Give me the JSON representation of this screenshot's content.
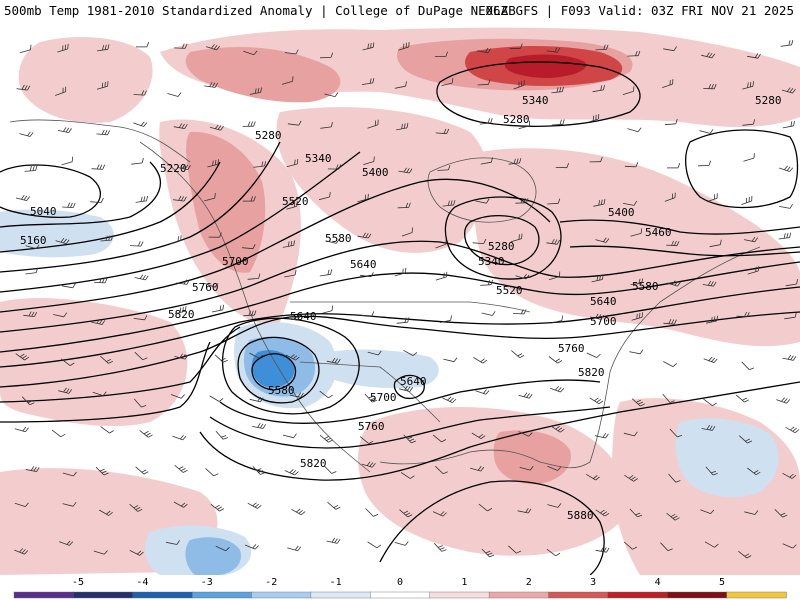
{
  "header": {
    "title_left": "500mb Temp 1981-2010 Standardized Anomaly | College of DuPage NEXLAB",
    "title_right": "06Z GFS | F093 Valid: 03Z FRI NOV 21 2025"
  },
  "map": {
    "contour_labels": [
      "5040",
      "5160",
      "5220",
      "5280",
      "5340",
      "5400",
      "5520",
      "5580",
      "5640",
      "5700",
      "5760",
      "5820",
      "5640",
      "5580",
      "5700",
      "5760",
      "5820",
      "5640",
      "5880",
      "5400",
      "5460",
      "5520",
      "5580",
      "5640",
      "5700",
      "5760",
      "5820",
      "5280",
      "5340",
      "5340",
      "5280",
      "5280"
    ],
    "colors": {
      "warm_light": "#f3cdcd",
      "warm_mid": "#e8a1a1",
      "warm_strong": "#d04646",
      "warm_deep": "#b81c2a",
      "cool_light": "#cfe0f1",
      "cool_mid": "#8fbce6",
      "cool_strong": "#3e8fd8"
    }
  },
  "colorbar": {
    "ticks": [
      "-5",
      "-4",
      "-3",
      "-2",
      "-1",
      "0",
      "1",
      "2",
      "3",
      "4",
      "5"
    ],
    "colors": [
      "#5a2d8c",
      "#24306e",
      "#1f5fb0",
      "#5aa2e0",
      "#a9cdef",
      "#dbe9f6",
      "#ffffff",
      "#f6dcdc",
      "#e9a9a9",
      "#d55858",
      "#bb2026",
      "#7e0f14",
      "#f0c63a"
    ]
  }
}
